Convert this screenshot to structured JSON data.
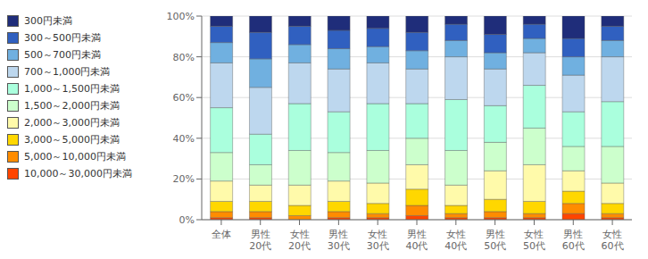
{
  "chart_data": {
    "type": "bar",
    "stacked": true,
    "categories": [
      "全体",
      "男性\n20代",
      "女性\n20代",
      "男性\n30代",
      "女性\n30代",
      "男性\n40代",
      "女性\n40代",
      "男性\n50代",
      "女性\n50代",
      "男性\n60代",
      "女性\n60代"
    ],
    "series": [
      {
        "name": "10,000～30,000円未満",
        "color": "#FF4500",
        "values": [
          1,
          1,
          0,
          1,
          1,
          2,
          1,
          1,
          1,
          3,
          1
        ]
      },
      {
        "name": "5,000～10,000円未満",
        "color": "#FF8C00",
        "values": [
          3,
          3,
          2,
          3,
          2,
          5,
          2,
          3,
          2,
          5,
          2
        ]
      },
      {
        "name": "3,000～5,000円未満",
        "color": "#FFD700",
        "values": [
          5,
          5,
          5,
          5,
          5,
          8,
          4,
          6,
          6,
          6,
          5
        ]
      },
      {
        "name": "2,000～3,000円未満",
        "color": "#FFFAAA",
        "values": [
          10,
          8,
          10,
          10,
          10,
          12,
          10,
          14,
          18,
          10,
          10
        ]
      },
      {
        "name": "1,500～2,000円未満",
        "color": "#CCFFCC",
        "values": [
          14,
          10,
          17,
          14,
          16,
          13,
          17,
          14,
          18,
          12,
          18
        ]
      },
      {
        "name": "1,000～1,500円未満",
        "color": "#AAFFDD",
        "values": [
          22,
          15,
          23,
          20,
          23,
          17,
          25,
          18,
          21,
          17,
          22
        ]
      },
      {
        "name": "700～1,000円未満",
        "color": "#BDD7EE",
        "values": [
          22,
          23,
          20,
          21,
          20,
          17,
          21,
          18,
          16,
          18,
          22
        ]
      },
      {
        "name": "500～700円未満",
        "color": "#70B0E0",
        "values": [
          10,
          14,
          9,
          10,
          8,
          9,
          8,
          8,
          7,
          9,
          8
        ]
      },
      {
        "name": "300～500円未満",
        "color": "#3060C0",
        "values": [
          8,
          13,
          9,
          9,
          9,
          9,
          8,
          9,
          7,
          9,
          7
        ]
      },
      {
        "name": "300円未満",
        "color": "#1F2D7A",
        "values": [
          5,
          8,
          5,
          7,
          6,
          8,
          4,
          9,
          4,
          11,
          5
        ]
      }
    ],
    "ylim": [
      0,
      100
    ],
    "yticks": [
      {
        "value": 0,
        "label": "0%"
      },
      {
        "value": 20,
        "label": "20%"
      },
      {
        "value": 40,
        "label": "40%"
      },
      {
        "value": 60,
        "label": "60%"
      },
      {
        "value": 80,
        "label": "80%"
      },
      {
        "value": 100,
        "label": "100%"
      }
    ],
    "grid": true,
    "legend": "upper left"
  }
}
